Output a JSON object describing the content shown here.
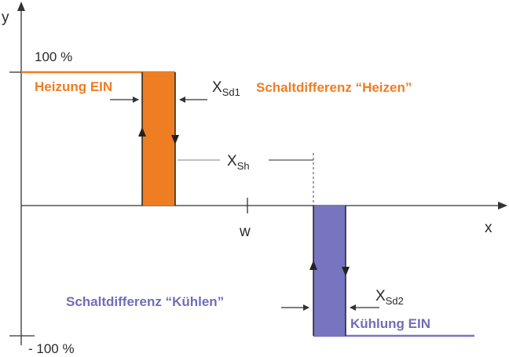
{
  "colors": {
    "heating": "#ef7d22",
    "cooling": "#7775c0",
    "cooling_text": "#6f6db8",
    "axis": "#333333",
    "guide": "#9a9a9a"
  },
  "labels": {
    "y_axis": "y",
    "x_axis": "x",
    "plus_100": "100 %",
    "minus_100": "- 100 %",
    "w": "w",
    "heating_on": "Heizung EIN",
    "heating_diff": "Schaltdifferenz “Heizen”",
    "cooling_diff": "Schaltdifferenz “Kühlen”",
    "cooling_on": "Kühlung EIN",
    "x_sd1_main": "X",
    "x_sd1_sub": "Sd1",
    "x_sh_main": "X",
    "x_sh_sub": "Sh",
    "x_sd2_main": "X",
    "x_sd2_sub": "Sd2"
  }
}
